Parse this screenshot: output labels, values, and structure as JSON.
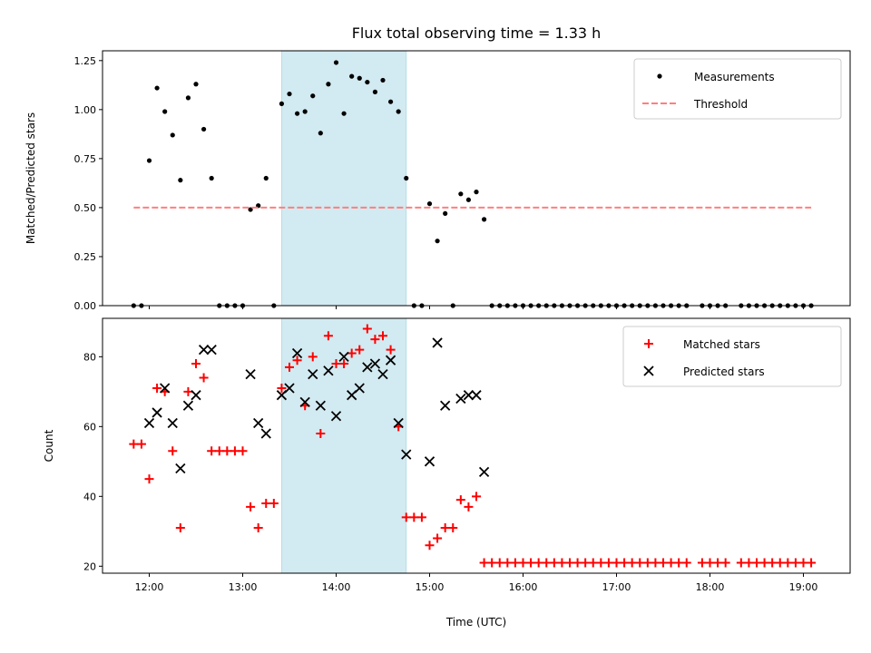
{
  "chart_data": [
    {
      "type": "scatter",
      "title": "Flux total observing time = 1.33 h",
      "xlabel": "",
      "ylabel": "Matched/Predicted stars",
      "xlim": [
        "11:30",
        "19:30"
      ],
      "ylim": [
        0,
        1.3
      ],
      "yticks": [
        "0.00",
        "0.25",
        "0.50",
        "0.75",
        "1.00",
        "1.25"
      ],
      "xticks": [
        "12:00",
        "13:00",
        "14:00",
        "15:00",
        "16:00",
        "17:00",
        "18:00",
        "19:00"
      ],
      "show_xtick_labels": false,
      "shaded_region": {
        "from": "13:25",
        "to": "14:45",
        "color": "#add8e6"
      },
      "legend": {
        "position": "upper right",
        "entries": [
          "Measurements",
          "Threshold"
        ]
      },
      "series": [
        {
          "name": "Measurements",
          "marker": "dot",
          "color": "#000000",
          "points": [
            [
              "11:50",
              0
            ],
            [
              "11:55",
              0
            ],
            [
              "12:00",
              0.74
            ],
            [
              "12:05",
              1.11
            ],
            [
              "12:10",
              0.99
            ],
            [
              "12:15",
              0.87
            ],
            [
              "12:20",
              0.64
            ],
            [
              "12:25",
              1.06
            ],
            [
              "12:30",
              1.13
            ],
            [
              "12:35",
              0.9
            ],
            [
              "12:40",
              0.65
            ],
            [
              "12:45",
              0
            ],
            [
              "12:50",
              0
            ],
            [
              "12:55",
              0
            ],
            [
              "13:00",
              0
            ],
            [
              "13:05",
              0.49
            ],
            [
              "13:10",
              0.51
            ],
            [
              "13:15",
              0.65
            ],
            [
              "13:20",
              0
            ],
            [
              "13:25",
              1.03
            ],
            [
              "13:30",
              1.08
            ],
            [
              "13:35",
              0.98
            ],
            [
              "13:40",
              0.99
            ],
            [
              "13:45",
              1.07
            ],
            [
              "13:50",
              0.88
            ],
            [
              "13:55",
              1.13
            ],
            [
              "14:00",
              1.24
            ],
            [
              "14:05",
              0.98
            ],
            [
              "14:10",
              1.17
            ],
            [
              "14:15",
              1.16
            ],
            [
              "14:20",
              1.14
            ],
            [
              "14:25",
              1.09
            ],
            [
              "14:30",
              1.15
            ],
            [
              "14:35",
              1.04
            ],
            [
              "14:40",
              0.99
            ],
            [
              "14:45",
              0.65
            ],
            [
              "14:50",
              0
            ],
            [
              "14:55",
              0
            ],
            [
              "15:00",
              0.52
            ],
            [
              "15:05",
              0.33
            ],
            [
              "15:10",
              0.47
            ],
            [
              "15:15",
              0
            ],
            [
              "15:20",
              0.57
            ],
            [
              "15:25",
              0.54
            ],
            [
              "15:30",
              0.58
            ],
            [
              "15:35",
              0.44
            ],
            [
              "15:40",
              0
            ],
            [
              "15:45",
              0
            ],
            [
              "15:50",
              0
            ],
            [
              "15:55",
              0
            ],
            [
              "16:00",
              0
            ],
            [
              "16:05",
              0
            ],
            [
              "16:10",
              0
            ],
            [
              "16:15",
              0
            ],
            [
              "16:20",
              0
            ],
            [
              "16:25",
              0
            ],
            [
              "16:30",
              0
            ],
            [
              "16:35",
              0
            ],
            [
              "16:40",
              0
            ],
            [
              "16:45",
              0
            ],
            [
              "16:50",
              0
            ],
            [
              "16:55",
              0
            ],
            [
              "17:00",
              0
            ],
            [
              "17:05",
              0
            ],
            [
              "17:10",
              0
            ],
            [
              "17:15",
              0
            ],
            [
              "17:20",
              0
            ],
            [
              "17:25",
              0
            ],
            [
              "17:30",
              0
            ],
            [
              "17:35",
              0
            ],
            [
              "17:40",
              0
            ],
            [
              "17:45",
              0
            ],
            [
              "17:55",
              0
            ],
            [
              "18:00",
              0
            ],
            [
              "18:05",
              0
            ],
            [
              "18:10",
              0
            ],
            [
              "18:20",
              0
            ],
            [
              "18:25",
              0
            ],
            [
              "18:30",
              0
            ],
            [
              "18:35",
              0
            ],
            [
              "18:40",
              0
            ],
            [
              "18:45",
              0
            ],
            [
              "18:50",
              0
            ],
            [
              "18:55",
              0
            ],
            [
              "19:00",
              0
            ],
            [
              "19:05",
              0
            ]
          ]
        },
        {
          "name": "Threshold",
          "style": "dashed-line",
          "color": "#ff7f7f",
          "x": [
            "11:50",
            "19:05"
          ],
          "y": [
            0.5,
            0.5
          ]
        }
      ]
    },
    {
      "type": "scatter",
      "title": "",
      "xlabel": "Time (UTC)",
      "ylabel": "Count",
      "xlim": [
        "11:30",
        "19:30"
      ],
      "ylim": [
        18,
        91
      ],
      "yticks": [
        "20",
        "40",
        "60",
        "80"
      ],
      "xticks": [
        "12:00",
        "13:00",
        "14:00",
        "15:00",
        "16:00",
        "17:00",
        "18:00",
        "19:00"
      ],
      "shaded_region": {
        "from": "13:25",
        "to": "14:45",
        "color": "#add8e6"
      },
      "legend": {
        "position": "upper right",
        "entries": [
          "Matched stars",
          "Predicted stars"
        ]
      },
      "series": [
        {
          "name": "Matched stars",
          "marker": "plus",
          "color": "#ff0000",
          "points": [
            [
              "11:50",
              55
            ],
            [
              "11:55",
              55
            ],
            [
              "12:00",
              45
            ],
            [
              "12:05",
              71
            ],
            [
              "12:10",
              70
            ],
            [
              "12:15",
              53
            ],
            [
              "12:20",
              31
            ],
            [
              "12:25",
              70
            ],
            [
              "12:30",
              78
            ],
            [
              "12:35",
              74
            ],
            [
              "12:40",
              53
            ],
            [
              "12:45",
              53
            ],
            [
              "12:50",
              53
            ],
            [
              "12:55",
              53
            ],
            [
              "13:00",
              53
            ],
            [
              "13:05",
              37
            ],
            [
              "13:10",
              31
            ],
            [
              "13:15",
              38
            ],
            [
              "13:20",
              38
            ],
            [
              "13:25",
              71
            ],
            [
              "13:30",
              77
            ],
            [
              "13:35",
              79
            ],
            [
              "13:40",
              66
            ],
            [
              "13:45",
              80
            ],
            [
              "13:50",
              58
            ],
            [
              "13:55",
              86
            ],
            [
              "14:00",
              78
            ],
            [
              "14:05",
              78
            ],
            [
              "14:10",
              81
            ],
            [
              "14:15",
              82
            ],
            [
              "14:20",
              88
            ],
            [
              "14:25",
              85
            ],
            [
              "14:30",
              86
            ],
            [
              "14:35",
              82
            ],
            [
              "14:40",
              60
            ],
            [
              "14:45",
              34
            ],
            [
              "14:50",
              34
            ],
            [
              "14:55",
              34
            ],
            [
              "15:00",
              26
            ],
            [
              "15:05",
              28
            ],
            [
              "15:10",
              31
            ],
            [
              "15:15",
              31
            ],
            [
              "15:20",
              39
            ],
            [
              "15:25",
              37
            ],
            [
              "15:30",
              40
            ],
            [
              "15:35",
              21
            ],
            [
              "15:40",
              21
            ],
            [
              "15:45",
              21
            ],
            [
              "15:50",
              21
            ],
            [
              "15:55",
              21
            ],
            [
              "16:00",
              21
            ],
            [
              "16:05",
              21
            ],
            [
              "16:10",
              21
            ],
            [
              "16:15",
              21
            ],
            [
              "16:20",
              21
            ],
            [
              "16:25",
              21
            ],
            [
              "16:30",
              21
            ],
            [
              "16:35",
              21
            ],
            [
              "16:40",
              21
            ],
            [
              "16:45",
              21
            ],
            [
              "16:50",
              21
            ],
            [
              "16:55",
              21
            ],
            [
              "17:00",
              21
            ],
            [
              "17:05",
              21
            ],
            [
              "17:10",
              21
            ],
            [
              "17:15",
              21
            ],
            [
              "17:20",
              21
            ],
            [
              "17:25",
              21
            ],
            [
              "17:30",
              21
            ],
            [
              "17:35",
              21
            ],
            [
              "17:40",
              21
            ],
            [
              "17:45",
              21
            ],
            [
              "17:55",
              21
            ],
            [
              "18:00",
              21
            ],
            [
              "18:05",
              21
            ],
            [
              "18:10",
              21
            ],
            [
              "18:20",
              21
            ],
            [
              "18:25",
              21
            ],
            [
              "18:30",
              21
            ],
            [
              "18:35",
              21
            ],
            [
              "18:40",
              21
            ],
            [
              "18:45",
              21
            ],
            [
              "18:50",
              21
            ],
            [
              "18:55",
              21
            ],
            [
              "19:00",
              21
            ],
            [
              "19:05",
              21
            ]
          ]
        },
        {
          "name": "Predicted stars",
          "marker": "x",
          "color": "#000000",
          "points": [
            [
              "12:00",
              61
            ],
            [
              "12:05",
              64
            ],
            [
              "12:10",
              71
            ],
            [
              "12:15",
              61
            ],
            [
              "12:20",
              48
            ],
            [
              "12:25",
              66
            ],
            [
              "12:30",
              69
            ],
            [
              "12:35",
              82
            ],
            [
              "12:40",
              82
            ],
            [
              "13:05",
              75
            ],
            [
              "13:10",
              61
            ],
            [
              "13:15",
              58
            ],
            [
              "13:25",
              69
            ],
            [
              "13:30",
              71
            ],
            [
              "13:35",
              81
            ],
            [
              "13:40",
              67
            ],
            [
              "13:45",
              75
            ],
            [
              "13:50",
              66
            ],
            [
              "13:55",
              76
            ],
            [
              "14:00",
              63
            ],
            [
              "14:05",
              80
            ],
            [
              "14:10",
              69
            ],
            [
              "14:15",
              71
            ],
            [
              "14:20",
              77
            ],
            [
              "14:25",
              78
            ],
            [
              "14:30",
              75
            ],
            [
              "14:35",
              79
            ],
            [
              "14:40",
              61
            ],
            [
              "14:45",
              52
            ],
            [
              "15:00",
              50
            ],
            [
              "15:05",
              84
            ],
            [
              "15:10",
              66
            ],
            [
              "15:20",
              68
            ],
            [
              "15:25",
              69
            ],
            [
              "15:30",
              69
            ],
            [
              "15:35",
              47
            ]
          ]
        }
      ]
    }
  ]
}
